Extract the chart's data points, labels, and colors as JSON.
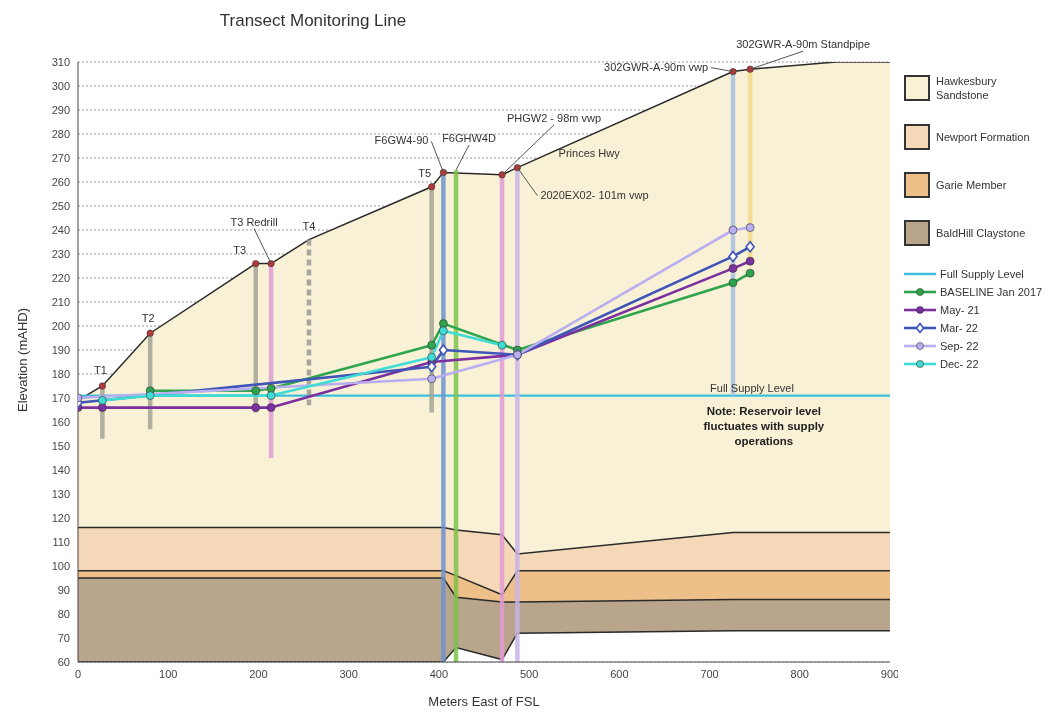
{
  "chart_data": {
    "type": "line",
    "title": "Transect Monitoring Line",
    "xlabel": "Meters East of FSL",
    "ylabel": "Elevation (mAHD)",
    "xlim": [
      0,
      900
    ],
    "ylim": [
      60,
      310
    ],
    "xticks": [
      0,
      100,
      200,
      300,
      400,
      500,
      600,
      700,
      800,
      900
    ],
    "yticks": [
      60,
      70,
      80,
      90,
      100,
      110,
      120,
      130,
      140,
      150,
      160,
      170,
      180,
      190,
      200,
      210,
      220,
      230,
      240,
      250,
      260,
      270,
      280,
      290,
      300,
      310
    ],
    "grid": "y",
    "legend": "right",
    "ref_lines": [
      {
        "axis": "y",
        "value": 171,
        "label": "Full Supply Level",
        "color": "#3cbfdc"
      }
    ],
    "series": [
      {
        "name": "Hawkesbury Sandstone",
        "type": "area",
        "color": "#f8f1d6",
        "x": [
          0,
          27,
          80,
          197,
          214,
          256,
          392,
          405,
          470,
          487,
          726,
          745,
          840,
          900
        ],
        "values": [
          169,
          175,
          197,
          226,
          226,
          236,
          258,
          264,
          263,
          266,
          306,
          307,
          310,
          310
        ]
      },
      {
        "name": "Newport Formation",
        "type": "area",
        "color": "#f4d8b8",
        "x": [
          0,
          405,
          419,
          470,
          487,
          726,
          900
        ],
        "values": [
          116,
          116,
          115,
          113,
          105,
          114,
          114
        ]
      },
      {
        "name": "Garie Member",
        "type": "area",
        "color": "#ecc088",
        "x": [
          0,
          405,
          419,
          470,
          487,
          726,
          900
        ],
        "values": [
          98,
          98,
          96,
          88,
          98,
          98,
          98
        ]
      },
      {
        "name": "BaldHill Claystone",
        "type": "area",
        "color": "#b9a48c",
        "x": [
          0,
          405,
          419,
          470,
          487,
          726,
          900
        ],
        "values": [
          95,
          95,
          87,
          85,
          85,
          86,
          86
        ]
      },
      {
        "type": "area",
        "color": "#ffffff",
        "x": [
          0,
          405,
          419,
          470,
          487,
          726,
          900
        ],
        "values": [
          60,
          60,
          66,
          61,
          72,
          73,
          73
        ]
      },
      {
        "type": "line",
        "color": "#a3a396",
        "marker": "none",
        "x": [
          27,
          27
        ],
        "values": [
          175,
          153
        ]
      },
      {
        "type": "line",
        "color": "#a3a396",
        "marker": "none",
        "x": [
          80,
          80
        ],
        "values": [
          197,
          157
        ]
      },
      {
        "type": "line",
        "color": "#a3a396",
        "marker": "none",
        "x": [
          197,
          197
        ],
        "values": [
          226,
          164
        ]
      },
      {
        "type": "line",
        "color": "#e49ad6",
        "marker": "none",
        "x": [
          214,
          214
        ],
        "values": [
          226,
          145
        ]
      },
      {
        "type": "line",
        "color": "#9a9a90",
        "marker": "none",
        "line_style": "dashed",
        "x": [
          256,
          256
        ],
        "values": [
          236,
          167
        ]
      },
      {
        "type": "line",
        "color": "#a3a396",
        "marker": "none",
        "x": [
          392,
          392
        ],
        "values": [
          258,
          164
        ]
      },
      {
        "type": "line",
        "color": "#6b93d0",
        "marker": "none",
        "x": [
          405,
          405
        ],
        "values": [
          264,
          60
        ]
      },
      {
        "type": "line",
        "color": "#7cc24a",
        "marker": "none",
        "x": [
          419,
          419
        ],
        "values": [
          265,
          60
        ]
      },
      {
        "type": "line",
        "color": "#e49ad6",
        "marker": "none",
        "x": [
          470,
          470
        ],
        "values": [
          263,
          60
        ]
      },
      {
        "type": "line",
        "color": "#c8b4ea",
        "marker": "none",
        "x": [
          487,
          487
        ],
        "values": [
          266,
          60
        ]
      },
      {
        "type": "line",
        "color": "#a9c1e2",
        "marker": "none",
        "x": [
          726,
          726
        ],
        "values": [
          306,
          171
        ]
      },
      {
        "type": "line",
        "color": "#f2d98a",
        "marker": "none",
        "x": [
          745,
          745
        ],
        "values": [
          307,
          226
        ]
      },
      {
        "name": "BASELINE Jan 2017",
        "type": "line",
        "color": "#2ea44c",
        "marker": "circle",
        "x": [
          80,
          197,
          214,
          392,
          405,
          487,
          726,
          745
        ],
        "values": [
          173,
          173,
          174,
          192,
          201,
          190,
          218,
          222
        ]
      },
      {
        "name": "May- 21",
        "type": "line",
        "color": "#7b2fa0",
        "marker": "circle",
        "x": [
          0,
          27,
          197,
          214,
          392,
          487,
          726,
          745
        ],
        "values": [
          166,
          166,
          166,
          166,
          185,
          188,
          224,
          227
        ]
      },
      {
        "name": "Mar- 22",
        "type": "line",
        "color": "#3f55b8",
        "marker": "diamond",
        "x": [
          0,
          392,
          405,
          487,
          726,
          745
        ],
        "values": [
          168,
          183,
          190,
          188,
          229,
          233
        ]
      },
      {
        "name": "Sep- 22",
        "type": "line",
        "color": "#b9aef0",
        "marker": "circle",
        "x": [
          0,
          392,
          487,
          726,
          745
        ],
        "values": [
          170,
          178,
          188,
          240,
          241
        ]
      },
      {
        "name": "Dec- 22",
        "type": "line",
        "color": "#3fdcd6",
        "marker": "circle",
        "x": [
          27,
          80,
          214,
          392,
          405,
          470
        ],
        "values": [
          169,
          171,
          171,
          187,
          198,
          192
        ]
      },
      {
        "type": "scatter",
        "color": "#b33a3a",
        "marker": "circle",
        "x": [
          27,
          80,
          197,
          214,
          392,
          405,
          470,
          487,
          726,
          745
        ],
        "values": [
          175,
          197,
          226,
          226,
          258,
          264,
          263,
          266,
          306,
          307
        ]
      }
    ],
    "annotations": [
      {
        "text": "T1",
        "x": 27,
        "y": 175
      },
      {
        "text": "T2",
        "x": 80,
        "y": 197
      },
      {
        "text": "T3",
        "x": 197,
        "y": 226
      },
      {
        "text": "T3 Redrill",
        "x": 214,
        "y": 226
      },
      {
        "text": "T4",
        "x": 256,
        "y": 236
      },
      {
        "text": "T5",
        "x": 392,
        "y": 258
      },
      {
        "text": "F6GW4-90",
        "x": 405,
        "y": 264
      },
      {
        "text": "F6GHW4D",
        "x": 419,
        "y": 265
      },
      {
        "text": "PHGW2 - 98m vwp",
        "x": 470,
        "y": 263
      },
      {
        "text": "Princes Hwy",
        "x": 520,
        "y": 271
      },
      {
        "text": "2020EX02- 101m vwp",
        "x": 487,
        "y": 266
      },
      {
        "text": "302GWR-A-90m vwp",
        "x": 726,
        "y": 306
      },
      {
        "text": "302GWR-A-90m Standpipe",
        "x": 745,
        "y": 307
      },
      "Note: Reservoir level fluctuates with supply operations"
    ]
  }
}
